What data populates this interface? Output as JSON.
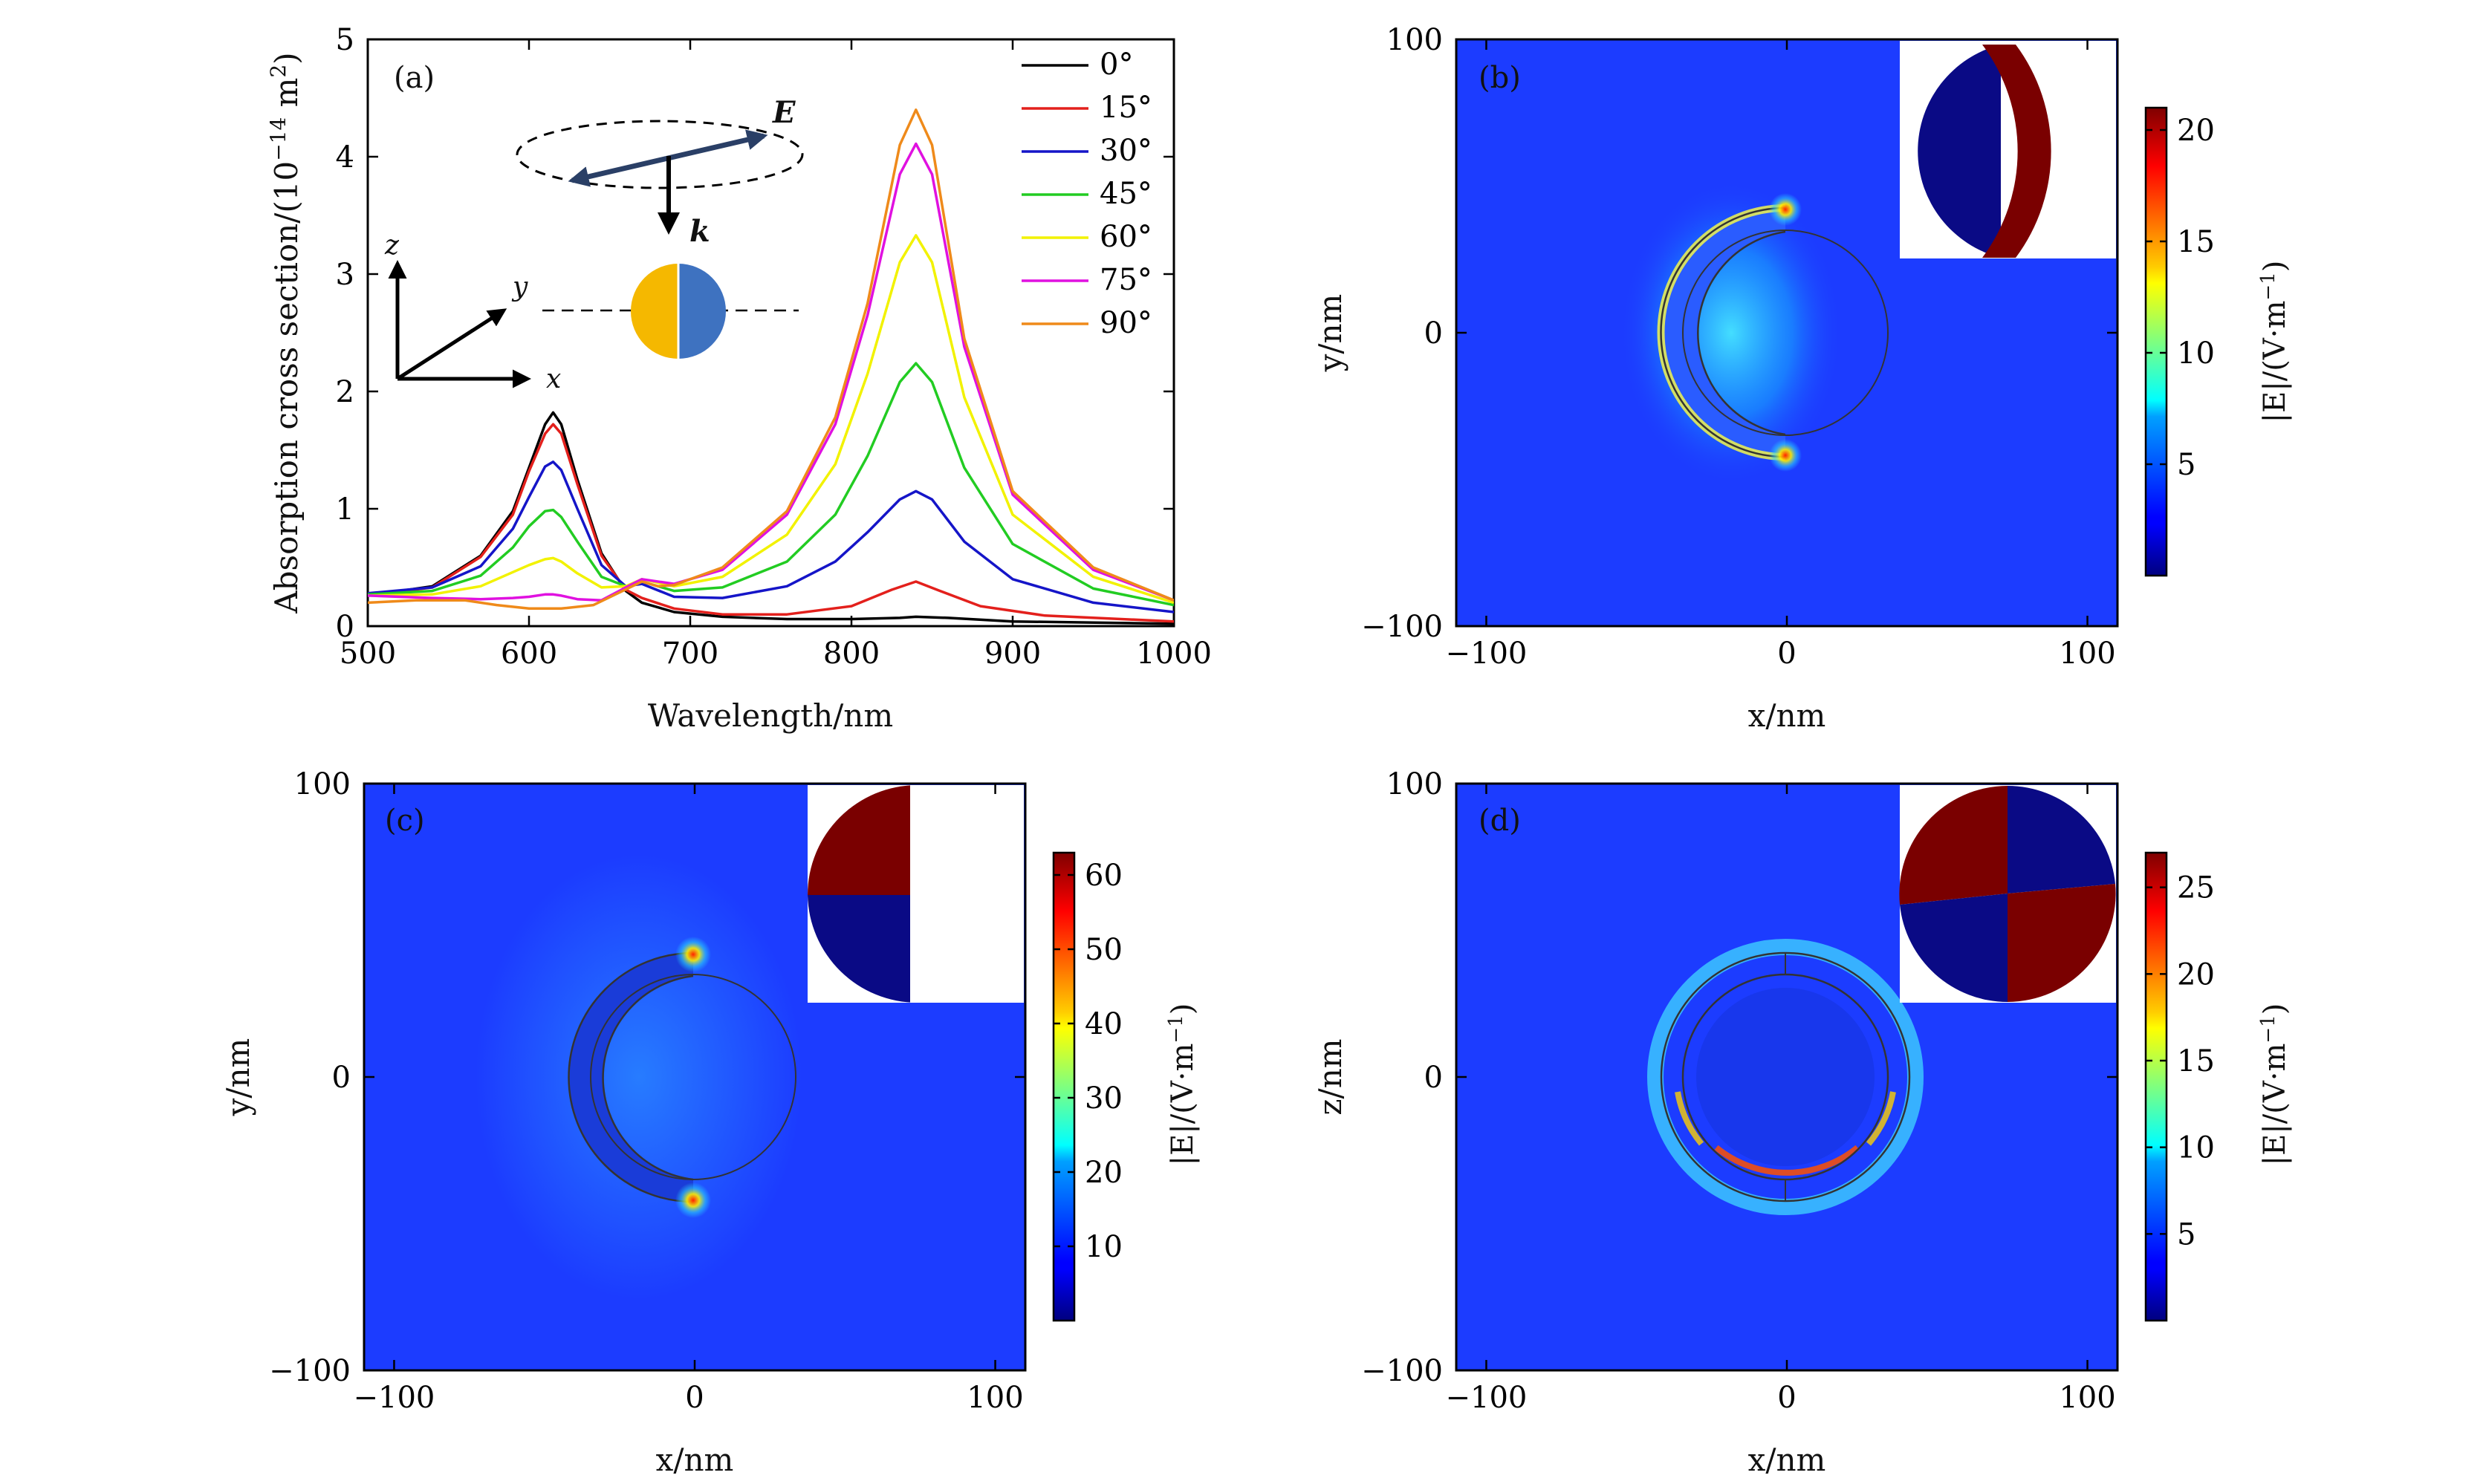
{
  "chart_data": [
    {
      "panel": "(a)",
      "type": "line",
      "xlabel": "Wavelength/nm",
      "ylabel": "Absorption cross section/(10",
      "ylabel_exp": "−14",
      "ylabel_tail": " m",
      "ylabel_exp2": "2",
      "ylabel_close": ")",
      "xlim": [
        500,
        1000
      ],
      "ylim": [
        0,
        5
      ],
      "xticks": [
        "500",
        "600",
        "700",
        "800",
        "900",
        "1000"
      ],
      "yticks": [
        "0",
        "1",
        "2",
        "3",
        "4",
        "5"
      ],
      "legend_placement": "top-right",
      "inset_labels": {
        "E": "E",
        "k": "k",
        "x": "x",
        "y": "y",
        "z": "z"
      },
      "inset_colors": {
        "left_half": "#f5b800",
        "right_half": "#3e72c0",
        "arrow": "#2a3f66"
      },
      "series": [
        {
          "name": "0°",
          "color": "#000000",
          "points": [
            [
              500,
              0.26
            ],
            [
              540,
              0.34
            ],
            [
              570,
              0.6
            ],
            [
              590,
              0.98
            ],
            [
              600,
              1.35
            ],
            [
              610,
              1.72
            ],
            [
              615,
              1.82
            ],
            [
              620,
              1.72
            ],
            [
              630,
              1.25
            ],
            [
              645,
              0.62
            ],
            [
              660,
              0.3
            ],
            [
              670,
              0.2
            ],
            [
              690,
              0.12
            ],
            [
              720,
              0.08
            ],
            [
              760,
              0.06
            ],
            [
              800,
              0.06
            ],
            [
              830,
              0.07
            ],
            [
              840,
              0.08
            ],
            [
              860,
              0.07
            ],
            [
              900,
              0.04
            ],
            [
              1000,
              0.02
            ]
          ]
        },
        {
          "name": "15°",
          "color": "#e3201c",
          "points": [
            [
              500,
              0.26
            ],
            [
              540,
              0.33
            ],
            [
              570,
              0.59
            ],
            [
              590,
              0.95
            ],
            [
              600,
              1.32
            ],
            [
              610,
              1.64
            ],
            [
              615,
              1.72
            ],
            [
              620,
              1.64
            ],
            [
              630,
              1.21
            ],
            [
              645,
              0.6
            ],
            [
              660,
              0.31
            ],
            [
              670,
              0.24
            ],
            [
              690,
              0.15
            ],
            [
              720,
              0.1
            ],
            [
              760,
              0.1
            ],
            [
              800,
              0.17
            ],
            [
              825,
              0.31
            ],
            [
              840,
              0.38
            ],
            [
              855,
              0.3
            ],
            [
              880,
              0.17
            ],
            [
              920,
              0.09
            ],
            [
              1000,
              0.04
            ]
          ]
        },
        {
          "name": "30°",
          "color": "#1515c8",
          "points": [
            [
              500,
              0.28
            ],
            [
              540,
              0.33
            ],
            [
              570,
              0.51
            ],
            [
              590,
              0.83
            ],
            [
              600,
              1.1
            ],
            [
              610,
              1.36
            ],
            [
              615,
              1.4
            ],
            [
              620,
              1.33
            ],
            [
              630,
              1.0
            ],
            [
              645,
              0.52
            ],
            [
              660,
              0.34
            ],
            [
              670,
              0.36
            ],
            [
              690,
              0.25
            ],
            [
              720,
              0.24
            ],
            [
              760,
              0.34
            ],
            [
              790,
              0.55
            ],
            [
              810,
              0.8
            ],
            [
              830,
              1.08
            ],
            [
              840,
              1.15
            ],
            [
              850,
              1.08
            ],
            [
              870,
              0.72
            ],
            [
              900,
              0.4
            ],
            [
              950,
              0.2
            ],
            [
              1000,
              0.12
            ]
          ]
        },
        {
          "name": "45°",
          "color": "#22cc22",
          "points": [
            [
              500,
              0.27
            ],
            [
              540,
              0.3
            ],
            [
              570,
              0.43
            ],
            [
              590,
              0.67
            ],
            [
              600,
              0.85
            ],
            [
              610,
              0.98
            ],
            [
              615,
              0.99
            ],
            [
              620,
              0.93
            ],
            [
              630,
              0.72
            ],
            [
              645,
              0.42
            ],
            [
              660,
              0.34
            ],
            [
              670,
              0.38
            ],
            [
              690,
              0.3
            ],
            [
              720,
              0.33
            ],
            [
              760,
              0.55
            ],
            [
              790,
              0.95
            ],
            [
              810,
              1.45
            ],
            [
              830,
              2.08
            ],
            [
              840,
              2.24
            ],
            [
              850,
              2.08
            ],
            [
              870,
              1.35
            ],
            [
              900,
              0.7
            ],
            [
              950,
              0.32
            ],
            [
              1000,
              0.18
            ]
          ]
        },
        {
          "name": "60°",
          "color": "#f2f200",
          "points": [
            [
              500,
              0.26
            ],
            [
              540,
              0.27
            ],
            [
              570,
              0.34
            ],
            [
              590,
              0.46
            ],
            [
              600,
              0.52
            ],
            [
              610,
              0.57
            ],
            [
              615,
              0.58
            ],
            [
              620,
              0.55
            ],
            [
              630,
              0.45
            ],
            [
              645,
              0.33
            ],
            [
              660,
              0.34
            ],
            [
              670,
              0.4
            ],
            [
              690,
              0.34
            ],
            [
              720,
              0.42
            ],
            [
              760,
              0.78
            ],
            [
              790,
              1.38
            ],
            [
              810,
              2.15
            ],
            [
              830,
              3.1
            ],
            [
              840,
              3.33
            ],
            [
              850,
              3.1
            ],
            [
              870,
              1.95
            ],
            [
              900,
              0.95
            ],
            [
              950,
              0.42
            ],
            [
              1000,
              0.2
            ]
          ]
        },
        {
          "name": "75°",
          "color": "#e011e0",
          "points": [
            [
              500,
              0.26
            ],
            [
              540,
              0.24
            ],
            [
              570,
              0.23
            ],
            [
              590,
              0.24
            ],
            [
              600,
              0.25
            ],
            [
              610,
              0.27
            ],
            [
              615,
              0.27
            ],
            [
              620,
              0.26
            ],
            [
              630,
              0.23
            ],
            [
              645,
              0.22
            ],
            [
              660,
              0.33
            ],
            [
              670,
              0.4
            ],
            [
              690,
              0.36
            ],
            [
              720,
              0.48
            ],
            [
              760,
              0.95
            ],
            [
              790,
              1.72
            ],
            [
              810,
              2.65
            ],
            [
              830,
              3.85
            ],
            [
              840,
              4.11
            ],
            [
              850,
              3.85
            ],
            [
              870,
              2.38
            ],
            [
              900,
              1.12
            ],
            [
              950,
              0.48
            ],
            [
              1000,
              0.22
            ]
          ]
        },
        {
          "name": "90°",
          "color": "#ef8a1a",
          "points": [
            [
              500,
              0.2
            ],
            [
              530,
              0.22
            ],
            [
              560,
              0.22
            ],
            [
              580,
              0.18
            ],
            [
              600,
              0.15
            ],
            [
              620,
              0.15
            ],
            [
              640,
              0.18
            ],
            [
              655,
              0.28
            ],
            [
              670,
              0.38
            ],
            [
              680,
              0.34
            ],
            [
              690,
              0.35
            ],
            [
              720,
              0.5
            ],
            [
              760,
              0.98
            ],
            [
              790,
              1.78
            ],
            [
              810,
              2.75
            ],
            [
              830,
              4.1
            ],
            [
              840,
              4.4
            ],
            [
              850,
              4.1
            ],
            [
              870,
              2.45
            ],
            [
              900,
              1.15
            ],
            [
              950,
              0.5
            ],
            [
              1000,
              0.22
            ]
          ]
        }
      ]
    },
    {
      "panel": "(b)",
      "type": "heatmap",
      "xlabel": "x/nm",
      "ylabel": "y/nm",
      "xlim": [
        -110,
        110
      ],
      "ylim": [
        -100,
        100
      ],
      "xticks": [
        "−100",
        "0",
        "100"
      ],
      "yticks": [
        "−100",
        "0",
        "100"
      ],
      "colorbar_label": "|E|/(V·m",
      "colorbar_exp": "−1",
      "colorbar_close": ")",
      "colorbar_range": [
        0,
        21
      ],
      "colorbar_ticks": [
        "5",
        "10",
        "15",
        "20"
      ]
    },
    {
      "panel": "(c)",
      "type": "heatmap",
      "xlabel": "x/nm",
      "ylabel": "y/nm",
      "xlim": [
        -110,
        110
      ],
      "ylim": [
        -100,
        100
      ],
      "xticks": [
        "−100",
        "0",
        "100"
      ],
      "yticks": [
        "−100",
        "0",
        "100"
      ],
      "colorbar_label": "|E|/(V·m",
      "colorbar_exp": "−1",
      "colorbar_close": ")",
      "colorbar_range": [
        0,
        63
      ],
      "colorbar_ticks": [
        "10",
        "20",
        "30",
        "40",
        "50",
        "60"
      ]
    },
    {
      "panel": "(d)",
      "type": "heatmap",
      "xlabel": "x/nm",
      "ylabel": "z/nm",
      "xlim": [
        -110,
        110
      ],
      "ylim": [
        -100,
        100
      ],
      "xticks": [
        "−100",
        "0",
        "100"
      ],
      "yticks": [
        "−100",
        "0",
        "100"
      ],
      "colorbar_label": "|E|/(V·m",
      "colorbar_exp": "−1",
      "colorbar_close": ")",
      "colorbar_range": [
        0,
        27
      ],
      "colorbar_ticks": [
        "5",
        "10",
        "15",
        "20",
        "25"
      ]
    }
  ]
}
